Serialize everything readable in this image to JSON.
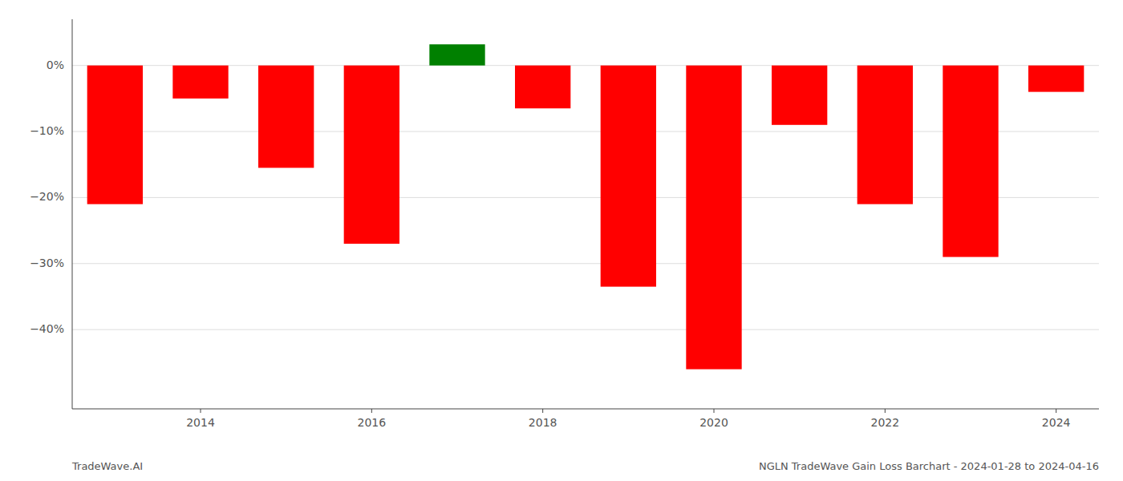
{
  "chart_data": {
    "type": "bar",
    "categories": [
      null,
      "2014",
      null,
      "2016",
      null,
      "2018",
      null,
      "2020",
      null,
      "2022",
      null,
      "2024"
    ],
    "values": [
      -0.21,
      -0.05,
      -0.155,
      -0.27,
      0.032,
      -0.065,
      -0.335,
      -0.46,
      -0.09,
      -0.21,
      -0.29,
      -0.04
    ],
    "colors": [
      "#ff0000",
      "#ff0000",
      "#ff0000",
      "#ff0000",
      "#008000",
      "#ff0000",
      "#ff0000",
      "#ff0000",
      "#ff0000",
      "#ff0000",
      "#ff0000",
      "#ff0000"
    ],
    "ylim": [
      -0.52,
      0.07
    ],
    "yticks": [
      {
        "value": 0.0,
        "label": "0%"
      },
      {
        "value": -0.1,
        "label": "−10%"
      },
      {
        "value": -0.2,
        "label": "−20%"
      },
      {
        "value": -0.3,
        "label": "−30%"
      },
      {
        "value": -0.4,
        "label": "−40%"
      }
    ],
    "grid": true,
    "annotations": [
      "TradeWave.AI",
      "NGLN TradeWave Gain Loss Barchart - 2024-01-28 to 2024-04-16"
    ]
  }
}
